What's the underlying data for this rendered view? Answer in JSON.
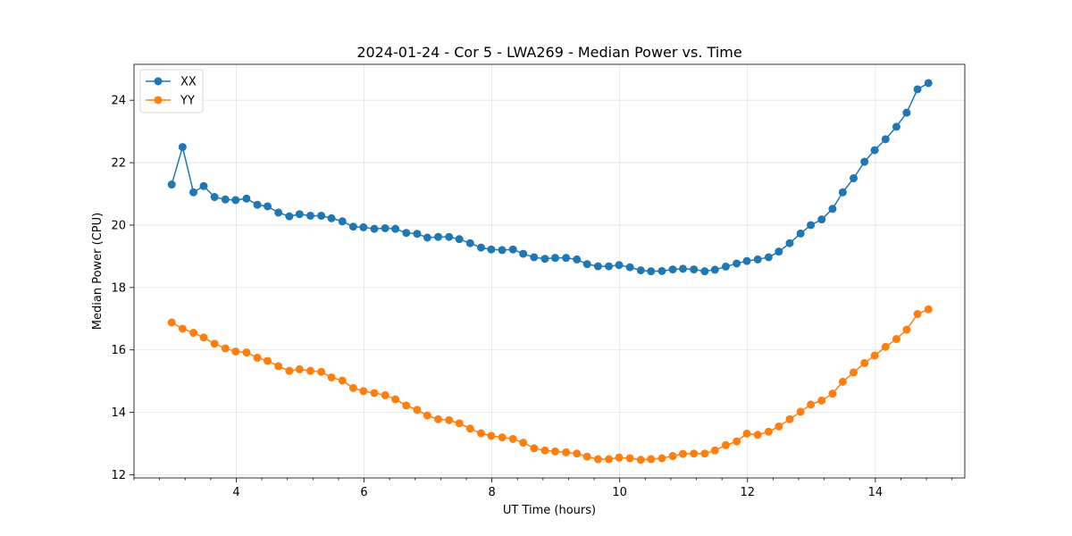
{
  "chart_data": {
    "type": "line",
    "title": "2024-01-24 - Cor 5 - LWA269 - Median Power vs. Time",
    "xlabel": "UT Time (hours)",
    "ylabel": "Median Power (CPU)",
    "xlim": [
      2.4,
      15.4
    ],
    "ylim": [
      11.9,
      25.15
    ],
    "xticks": [
      4,
      6,
      8,
      10,
      12,
      14
    ],
    "xtick_labels": [
      "4",
      "6",
      "8",
      "10",
      "12",
      "14"
    ],
    "yticks": [
      12,
      14,
      16,
      18,
      20,
      22,
      24
    ],
    "ytick_labels": [
      "12",
      "14",
      "16",
      "18",
      "20",
      "22",
      "24"
    ],
    "grid": true,
    "legend_position": "top-left",
    "x": [
      2.99,
      3.16,
      3.33,
      3.49,
      3.66,
      3.83,
      3.99,
      4.16,
      4.33,
      4.49,
      4.66,
      4.83,
      4.99,
      5.16,
      5.33,
      5.49,
      5.66,
      5.83,
      5.99,
      6.16,
      6.33,
      6.49,
      6.66,
      6.83,
      6.99,
      7.16,
      7.33,
      7.49,
      7.66,
      7.83,
      7.99,
      8.16,
      8.33,
      8.49,
      8.66,
      8.83,
      8.99,
      9.16,
      9.33,
      9.49,
      9.66,
      9.83,
      9.99,
      10.16,
      10.33,
      10.49,
      10.66,
      10.83,
      10.99,
      11.16,
      11.33,
      11.49,
      11.66,
      11.83,
      11.99,
      12.16,
      12.33,
      12.49,
      12.66,
      12.83,
      12.99,
      13.16,
      13.33,
      13.49,
      13.66,
      13.83,
      13.99,
      14.16,
      14.33,
      14.49,
      14.66,
      14.83
    ],
    "series": [
      {
        "name": "XX",
        "color": "#1f77b4",
        "values": [
          21.3,
          22.5,
          21.05,
          21.25,
          20.9,
          20.82,
          20.8,
          20.85,
          20.65,
          20.6,
          20.4,
          20.28,
          20.35,
          20.3,
          20.3,
          20.22,
          20.12,
          19.95,
          19.93,
          19.88,
          19.9,
          19.88,
          19.75,
          19.72,
          19.6,
          19.62,
          19.62,
          19.55,
          19.42,
          19.28,
          19.22,
          19.2,
          19.22,
          19.08,
          18.97,
          18.92,
          18.95,
          18.95,
          18.9,
          18.75,
          18.68,
          18.68,
          18.72,
          18.65,
          18.55,
          18.52,
          18.53,
          18.58,
          18.6,
          18.58,
          18.52,
          18.57,
          18.67,
          18.77,
          18.85,
          18.9,
          18.97,
          19.15,
          19.42,
          19.73,
          20.0,
          20.18,
          20.52,
          21.05,
          21.5,
          22.03,
          22.4,
          22.75,
          23.15,
          23.6,
          24.35,
          24.55
        ]
      },
      {
        "name": "YY",
        "color": "#ff7f0e",
        "values": [
          16.88,
          16.68,
          16.55,
          16.4,
          16.2,
          16.05,
          15.95,
          15.92,
          15.75,
          15.65,
          15.48,
          15.33,
          15.38,
          15.33,
          15.3,
          15.12,
          15.02,
          14.78,
          14.68,
          14.62,
          14.55,
          14.42,
          14.22,
          14.08,
          13.9,
          13.78,
          13.75,
          13.65,
          13.48,
          13.33,
          13.25,
          13.2,
          13.15,
          13.03,
          12.85,
          12.78,
          12.75,
          12.72,
          12.68,
          12.58,
          12.5,
          12.5,
          12.55,
          12.53,
          12.48,
          12.5,
          12.53,
          12.6,
          12.67,
          12.68,
          12.68,
          12.78,
          12.95,
          13.07,
          13.32,
          13.28,
          13.38,
          13.55,
          13.78,
          14.02,
          14.25,
          14.38,
          14.6,
          14.98,
          15.28,
          15.58,
          15.82,
          16.1,
          16.35,
          16.65,
          17.15,
          17.3
        ]
      }
    ]
  }
}
